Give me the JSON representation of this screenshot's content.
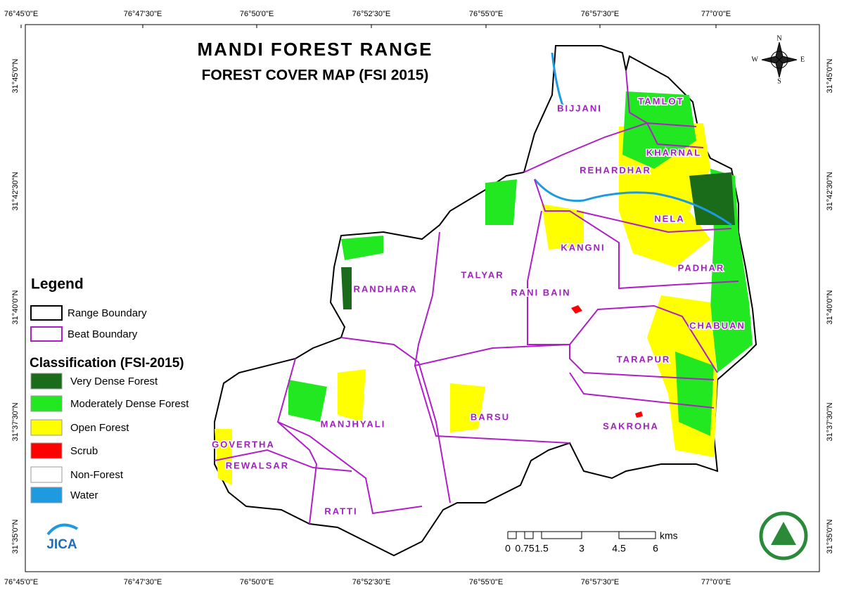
{
  "title": "MANDI FOREST RANGE",
  "subtitle": "FOREST COVER MAP (FSI 2015)",
  "longitude_labels": [
    "76°45'0\"E",
    "76°47'30\"E",
    "76°50'0\"E",
    "76°52'30\"E",
    "76°55'0\"E",
    "76°57'30\"E",
    "77°0'0\"E"
  ],
  "latitude_labels": [
    "31°45'0\"N",
    "31°42'30\"N",
    "31°40'0\"N",
    "31°37'30\"N",
    "31°35'0\"N"
  ],
  "legend": {
    "title": "Legend",
    "boundaries": [
      {
        "label": "Range Boundary",
        "color": "#000000"
      },
      {
        "label": "Beat Boundary",
        "color": "#b01ec8"
      }
    ],
    "classification_title": "Classification (FSI-2015)",
    "classes": [
      {
        "label": "Very Dense Forest",
        "color": "#1a6b1a"
      },
      {
        "label": "Moderately Dense Forest",
        "color": "#22e822"
      },
      {
        "label": "Open Forest",
        "color": "#ffff00"
      },
      {
        "label": "Scrub",
        "color": "#ff0000"
      },
      {
        "label": "Non-Forest",
        "color": "#ffffff"
      },
      {
        "label": "Water",
        "color": "#1e9be0"
      }
    ]
  },
  "beats": [
    "BIJJANI",
    "TAMLOT",
    "KHARNAL",
    "REHARDHAR",
    "NELA",
    "KANGNI",
    "PADHAR",
    "TALYAR",
    "RANI BAIN",
    "RANDHARA",
    "CHABUAN",
    "TARAPUR",
    "BARSU",
    "MANJHYALI",
    "SAKROHA",
    "GOVERTHA",
    "REWALSAR",
    "RATTI"
  ],
  "scale_bar": {
    "ticks": [
      "0",
      "0.75",
      "1.5",
      "3",
      "4.5",
      "6"
    ],
    "unit": "kms"
  },
  "compass": {
    "north": "N",
    "south": "S",
    "east": "E",
    "west": "W"
  },
  "logo": "JICA"
}
